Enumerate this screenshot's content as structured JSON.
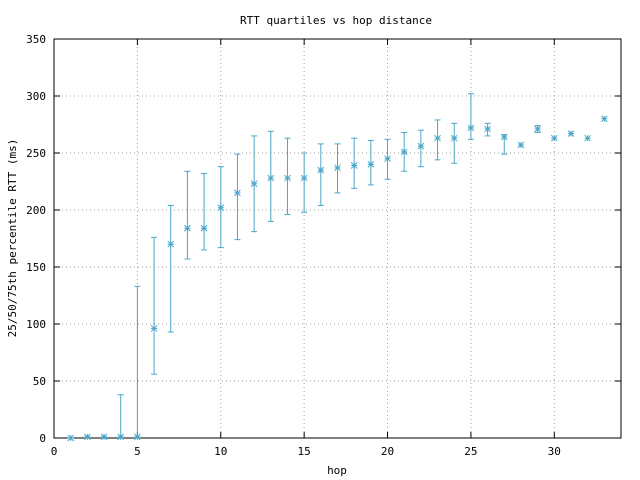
{
  "chart_data": {
    "type": "scatter",
    "title": "RTT quartiles vs hop distance",
    "xlabel": "hop",
    "ylabel": "25/50/75th percentile RTT (ms)",
    "xlim": [
      0,
      34
    ],
    "ylim": [
      0,
      350
    ],
    "xticks": [
      0,
      5,
      10,
      15,
      20,
      25,
      30
    ],
    "yticks": [
      0,
      50,
      100,
      150,
      200,
      250,
      300,
      350
    ],
    "grid": true,
    "color": "#4aa6c8",
    "points": [
      {
        "x": 1,
        "q1": 0,
        "median": 0,
        "q3": 0
      },
      {
        "x": 2,
        "q1": 0,
        "median": 1,
        "q3": 1
      },
      {
        "x": 3,
        "q1": 0,
        "median": 1,
        "q3": 1
      },
      {
        "x": 4,
        "q1": 0,
        "median": 1,
        "q3": 38
      },
      {
        "x": 5,
        "q1": 0,
        "median": 1,
        "q3": 133
      },
      {
        "x": 6,
        "q1": 56,
        "median": 96,
        "q3": 176
      },
      {
        "x": 7,
        "q1": 93,
        "median": 170,
        "q3": 204
      },
      {
        "x": 8,
        "q1": 157,
        "median": 184,
        "q3": 234
      },
      {
        "x": 9,
        "q1": 165,
        "median": 184,
        "q3": 232
      },
      {
        "x": 10,
        "q1": 167,
        "median": 202,
        "q3": 238
      },
      {
        "x": 11,
        "q1": 174,
        "median": 215,
        "q3": 249
      },
      {
        "x": 12,
        "q1": 181,
        "median": 223,
        "q3": 265
      },
      {
        "x": 13,
        "q1": 190,
        "median": 228,
        "q3": 269
      },
      {
        "x": 14,
        "q1": 196,
        "median": 228,
        "q3": 263
      },
      {
        "x": 15,
        "q1": 198,
        "median": 228,
        "q3": 250
      },
      {
        "x": 16,
        "q1": 204,
        "median": 235,
        "q3": 258
      },
      {
        "x": 17,
        "q1": 215,
        "median": 237,
        "q3": 258
      },
      {
        "x": 18,
        "q1": 219,
        "median": 239,
        "q3": 263
      },
      {
        "x": 19,
        "q1": 222,
        "median": 240,
        "q3": 261
      },
      {
        "x": 20,
        "q1": 227,
        "median": 245,
        "q3": 262
      },
      {
        "x": 21,
        "q1": 234,
        "median": 251,
        "q3": 268
      },
      {
        "x": 22,
        "q1": 238,
        "median": 256,
        "q3": 270
      },
      {
        "x": 23,
        "q1": 244,
        "median": 263,
        "q3": 279
      },
      {
        "x": 24,
        "q1": 241,
        "median": 263,
        "q3": 276
      },
      {
        "x": 25,
        "q1": 262,
        "median": 272,
        "q3": 302
      },
      {
        "x": 26,
        "q1": 265,
        "median": 271,
        "q3": 276
      },
      {
        "x": 27,
        "q1": 249,
        "median": 264,
        "q3": 266
      },
      {
        "x": 28,
        "q1": 257,
        "median": 257,
        "q3": 257
      },
      {
        "x": 29,
        "q1": 268,
        "median": 271,
        "q3": 274
      },
      {
        "x": 30,
        "q1": 263,
        "median": 263,
        "q3": 263
      },
      {
        "x": 31,
        "q1": 267,
        "median": 267,
        "q3": 267
      },
      {
        "x": 32,
        "q1": 263,
        "median": 263,
        "q3": 263
      },
      {
        "x": 33,
        "q1": 280,
        "median": 280,
        "q3": 280
      }
    ]
  }
}
